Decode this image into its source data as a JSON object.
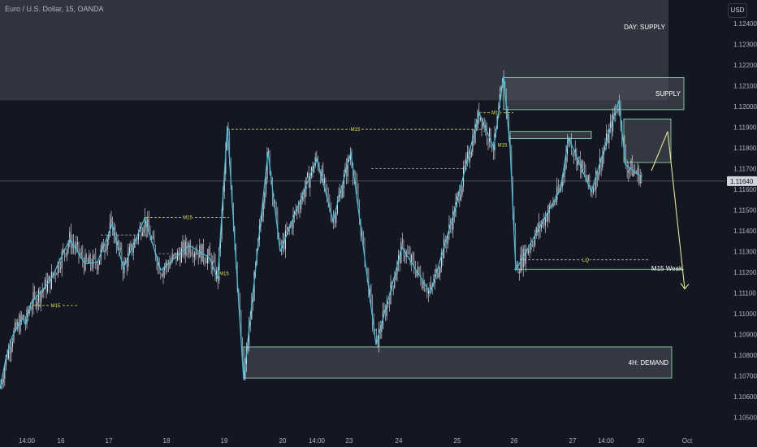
{
  "header": {
    "symbol_line": "Euro / U.S. Dollar, 15, OANDA",
    "currency_button": "USD"
  },
  "colors": {
    "background": "#131722",
    "zigzag": "#3fc3e3",
    "candles": "#c9ccd4",
    "zone_fill": "#4b4e58",
    "zone_border": "#9be7b4",
    "m15_line": "#e7e24a",
    "arrow": "#e5e58c",
    "grid_text": "#b2b5be"
  },
  "chart_data": {
    "type": "line",
    "title": "Euro / U.S. Dollar, 15, OANDA",
    "ylim": [
      1.1045,
      1.125
    ],
    "yticks": [
      "1.12400",
      "1.12300",
      "1.12200",
      "1.12100",
      "1.12000",
      "1.11900",
      "1.11800",
      "1.11700",
      "1.11600",
      "1.11500",
      "1.11400",
      "1.11300",
      "1.11200",
      "1.11100",
      "1.11000",
      "1.10900",
      "1.10800",
      "1.10700",
      "1.10600",
      "1.10500"
    ],
    "xticks": [
      "14:00",
      "16",
      "17",
      "18",
      "19",
      "20",
      "14:00",
      "23",
      "24",
      "25",
      "26",
      "27",
      "14:00",
      "30",
      "Oct"
    ],
    "last_price": "1.11640",
    "zigzag": [
      [
        0,
        1.1064
      ],
      [
        7,
        1.1078
      ],
      [
        15,
        1.1089
      ],
      [
        28,
        1.1098
      ],
      [
        31,
        1.1095
      ],
      [
        38,
        1.1105
      ],
      [
        62,
        1.1116
      ],
      [
        86,
        1.1136
      ],
      [
        105,
        1.1124
      ],
      [
        120,
        1.1125
      ],
      [
        138,
        1.1143
      ],
      [
        152,
        1.1122
      ],
      [
        178,
        1.1146
      ],
      [
        198,
        1.1121
      ],
      [
        233,
        1.1133
      ],
      [
        258,
        1.1127
      ],
      [
        268,
        1.1117
      ],
      [
        280,
        1.119
      ],
      [
        300,
        1.1068
      ],
      [
        330,
        1.1178
      ],
      [
        345,
        1.113
      ],
      [
        390,
        1.1175
      ],
      [
        410,
        1.1145
      ],
      [
        432,
        1.1178
      ],
      [
        463,
        1.1085
      ],
      [
        495,
        1.1132
      ],
      [
        530,
        1.111
      ],
      [
        560,
        1.115
      ],
      [
        590,
        1.1197
      ],
      [
        608,
        1.118
      ],
      [
        620,
        1.1215
      ],
      [
        628,
        1.118
      ],
      [
        635,
        1.1121
      ],
      [
        690,
        1.116
      ],
      [
        700,
        1.1185
      ],
      [
        728,
        1.1159
      ],
      [
        762,
        1.1203
      ],
      [
        770,
        1.1172
      ],
      [
        790,
        1.1166
      ]
    ],
    "zones": [
      {
        "label": "DAY: SUPPLY",
        "x0": 0,
        "x1": 823,
        "low": 1.1203,
        "high": 1.1252
      },
      {
        "label": "SUPPLY",
        "x0": 620,
        "x1": 842,
        "low": 1.11985,
        "high": 1.1214
      },
      {
        "label": "",
        "x0": 768,
        "x1": 826,
        "low": 1.1173,
        "high": 1.1194
      },
      {
        "label": "",
        "x0": 628,
        "x1": 728,
        "low": 1.11845,
        "high": 1.1188
      },
      {
        "label": "4H: DEMAND",
        "x0": 300,
        "x1": 827,
        "low": 1.1069,
        "high": 1.1084
      }
    ],
    "m15_levels": [
      {
        "label": "M15",
        "x0": 42,
        "x1": 95,
        "y": 1.1104,
        "style": "dashed"
      },
      {
        "label": "M15",
        "x0": 180,
        "x1": 282,
        "y": 1.11465,
        "style": "dashed"
      },
      {
        "label": "M15",
        "x0": 280,
        "x1": 595,
        "y": 1.1189,
        "style": "dashed"
      },
      {
        "label": "M15",
        "x0": 590,
        "x1": 632,
        "y": 1.1197,
        "style": "dashed"
      },
      {
        "label": "M15",
        "x0": 612,
        "x1": 625,
        "y": 1.11815,
        "style": "none"
      },
      {
        "label": "M15",
        "x0": 270,
        "x1": 282,
        "y": 1.11195,
        "style": "none"
      }
    ],
    "grey_levels": [
      {
        "x0": 124,
        "x1": 182,
        "y": 1.1138
      },
      {
        "x0": 190,
        "x1": 250,
        "y": 1.1129
      },
      {
        "x0": 457,
        "x1": 576,
        "y": 1.117
      }
    ],
    "lq_level": {
      "label": "LQ",
      "x0": 640,
      "x1": 798,
      "y": 1.1126
    },
    "lq_base": {
      "x0": 633,
      "x1": 842,
      "y": 1.11215
    },
    "projection": [
      [
        802,
        1.1169
      ],
      [
        822,
        1.1188
      ],
      [
        843,
        1.1112
      ]
    ],
    "projection_label": "M15 Weak"
  }
}
